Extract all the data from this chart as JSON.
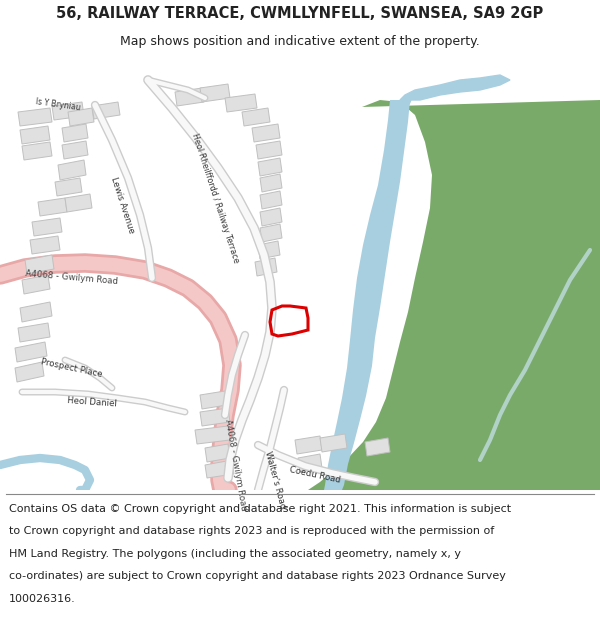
{
  "title": "56, RAILWAY TERRACE, CWMLLYNFELL, SWANSEA, SA9 2GP",
  "subtitle": "Map shows position and indicative extent of the property.",
  "footer_lines": [
    "Contains OS data © Crown copyright and database right 2021. This information is subject",
    "to Crown copyright and database rights 2023 and is reproduced with the permission of",
    "HM Land Registry. The polygons (including the associated geometry, namely x, y",
    "co-ordinates) are subject to Crown copyright and database rights 2023 Ordnance Survey",
    "100026316."
  ],
  "map_bg": "#ffffff",
  "road_pink": "#f5c8c8",
  "road_pink_border": "#e8a8a8",
  "water_blue": "#a8cfe0",
  "water_blue_light": "#c8e0ed",
  "green_area": "#7aaa6a",
  "green_area_dark": "#5a9050",
  "building_color": "#e0e0e0",
  "building_border": "#c0c0c0",
  "highlight_red": "#dd0000",
  "text_color": "#222222",
  "road_white": "#f8f8f8",
  "road_border": "#d0d0d0",
  "title_fontsize": 10.5,
  "subtitle_fontsize": 9,
  "footer_fontsize": 8.0
}
